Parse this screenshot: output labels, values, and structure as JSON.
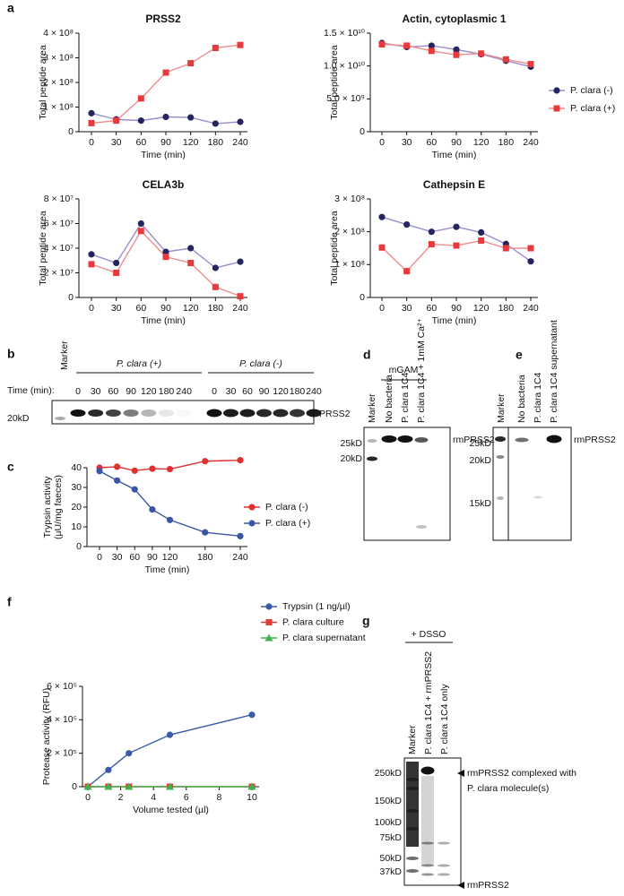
{
  "chart_data": [
    {
      "type": "line",
      "title": "PRSS2",
      "x_label": "Time (min)",
      "y_label": "Total peptide area",
      "categories": [
        0,
        30,
        60,
        90,
        120,
        180,
        240
      ],
      "ylim": [
        0,
        400000000
      ],
      "yticks": [
        0,
        {
          "value": 100000000,
          "label": "1 × 10⁸"
        },
        {
          "value": 200000000,
          "label": "2 × 10⁸"
        },
        {
          "value": 300000000,
          "label": "3 × 10⁸"
        },
        {
          "value": 400000000,
          "label": "4 × 10⁸"
        }
      ],
      "series": [
        {
          "color": "#24245e",
          "line_color": "#9c8ccc",
          "marker": "circle",
          "values": [
            75000000,
            50000000,
            45000000,
            60000000,
            58000000,
            33000000,
            40000000
          ]
        },
        {
          "color": "#e8393c",
          "line_color": "#f08c8c",
          "marker": "square",
          "values": [
            35000000,
            45000000,
            135000000,
            240000000,
            278000000,
            340000000,
            352000000
          ]
        }
      ]
    },
    {
      "type": "line",
      "title": "Actin, cytoplasmic 1",
      "x_label": "Time (min)",
      "y_label": "Total peptide area",
      "categories": [
        0,
        30,
        60,
        90,
        120,
        180,
        240
      ],
      "ylim": [
        0,
        15000000000
      ],
      "yticks": [
        0,
        {
          "value": 5000000000,
          "label": "5.0 × 10⁹"
        },
        {
          "value": 10000000000,
          "label": "1.0 × 10¹⁰"
        },
        {
          "value": 15000000000,
          "label": "1.5 × 10¹⁰"
        }
      ],
      "legend": true,
      "series": [
        {
          "name": "P. clara (-)",
          "color": "#24245e",
          "line_color": "#9c8ccc",
          "marker": "circle",
          "values": [
            13500000000,
            12900000000,
            13100000000,
            12500000000,
            11800000000,
            10800000000,
            9900000000
          ]
        },
        {
          "name": "P. clara (+)",
          "color": "#e8393c",
          "line_color": "#f08c8c",
          "marker": "square",
          "values": [
            13300000000,
            13100000000,
            12300000000,
            11700000000,
            11900000000,
            11000000000,
            10300000000
          ]
        }
      ]
    },
    {
      "type": "line",
      "title": "CELA3b",
      "x_label": "Time (min)",
      "y_label": "Total peptide area",
      "categories": [
        0,
        30,
        60,
        90,
        120,
        180,
        240
      ],
      "ylim": [
        0,
        80000000
      ],
      "yticks": [
        0,
        {
          "value": 20000000,
          "label": "2 × 10⁷"
        },
        {
          "value": 40000000,
          "label": "4 × 10⁷"
        },
        {
          "value": 60000000,
          "label": "6 × 10⁷"
        },
        {
          "value": 80000000,
          "label": "8 × 10⁷"
        }
      ],
      "series": [
        {
          "color": "#24245e",
          "line_color": "#9c8ccc",
          "marker": "circle",
          "values": [
            35000000,
            28000000,
            60000000,
            37000000,
            40000000,
            24000000,
            29000000
          ]
        },
        {
          "color": "#e8393c",
          "line_color": "#f08c8c",
          "marker": "square",
          "values": [
            27000000,
            20000000,
            54000000,
            33000000,
            28000000,
            8500000,
            1000000
          ]
        }
      ]
    },
    {
      "type": "line",
      "title": "Cathepsin E",
      "x_label": "Time (min)",
      "y_label": "Total peptide area",
      "categories": [
        0,
        30,
        60,
        90,
        120,
        180,
        240
      ],
      "ylim": [
        0,
        300000000
      ],
      "yticks": [
        0,
        {
          "value": 100000000,
          "label": "1 × 10⁸"
        },
        {
          "value": 200000000,
          "label": "2 × 10⁸"
        },
        {
          "value": 300000000,
          "label": "3 × 10⁸"
        }
      ],
      "series": [
        {
          "color": "#24245e",
          "line_color": "#9c8ccc",
          "marker": "circle",
          "values": [
            245000000,
            222000000,
            200000000,
            215000000,
            198000000,
            163000000,
            110000000
          ]
        },
        {
          "color": "#e8393c",
          "line_color": "#f08c8c",
          "marker": "square",
          "values": [
            152000000,
            80000000,
            162000000,
            158000000,
            173000000,
            150000000,
            150000000
          ]
        }
      ]
    },
    {
      "type": "line",
      "x_label": "Time (min)",
      "y_label": [
        "Trypsin activity",
        "(µU/mg faeces)"
      ],
      "x": [
        0,
        30,
        60,
        90,
        120,
        180,
        240
      ],
      "xlim": [
        0,
        240
      ],
      "xticks": [
        0,
        30,
        60,
        90,
        120,
        180,
        240
      ],
      "ylim": [
        0,
        40
      ],
      "yticks": [
        0,
        10,
        20,
        30,
        40
      ],
      "legend": true,
      "series": [
        {
          "name": "P. clara (-)",
          "color": "#e0312f",
          "line_color": "#e0312f",
          "marker": "circle",
          "values": [
            40,
            40.5,
            38.5,
            39.5,
            39.3,
            43.3,
            43.8
          ]
        },
        {
          "name": "P. clara (+)",
          "color": "#3a56a5",
          "line_color": "#3a56a5",
          "marker": "circle",
          "values": [
            38.3,
            33.5,
            29,
            18.8,
            13.5,
            7.2,
            5.3
          ]
        }
      ]
    },
    {
      "type": "line",
      "x_label": "Volume tested (µl)",
      "y_label": "Protease activity (RFU)",
      "x": [
        0,
        1.25,
        2.5,
        5,
        10
      ],
      "xlim": [
        0,
        10
      ],
      "xticks": [
        0,
        2,
        4,
        6,
        8,
        10
      ],
      "ylim": [
        0,
        600000
      ],
      "yticks": [
        0,
        {
          "value": 200000,
          "label": "2 × 10⁵"
        },
        {
          "value": 400000,
          "label": "4 × 10⁵"
        },
        {
          "value": 600000,
          "label": "6 × 10⁵"
        }
      ],
      "legend": true,
      "series": [
        {
          "name": "Trypsin (1 ng/µl)",
          "color": "#3a5ba8",
          "line_color": "#3a5ba8",
          "marker": "circle",
          "values": [
            0,
            100000,
            200000,
            310000,
            430000
          ]
        },
        {
          "name": "P. clara culture",
          "color": "#e33b35",
          "line_color": "#e33b35",
          "marker": "square",
          "values": [
            0,
            0,
            0,
            0,
            0
          ]
        },
        {
          "name": "P. clara supernatant",
          "color": "#3cb44b",
          "line_color": "#3cb44b",
          "marker": "triangle",
          "values": [
            0,
            0,
            0,
            0,
            0
          ]
        }
      ]
    }
  ],
  "panel_labels": [
    "a",
    "b",
    "c",
    "d",
    "e",
    "f",
    "g"
  ],
  "blot_b": {
    "marker": "Marker",
    "time_label": "Time (min):",
    "groups": [
      {
        "label": "P. clara (+)",
        "lanes": [
          "0",
          "30",
          "60",
          "90",
          "120",
          "180",
          "240"
        ]
      },
      {
        "label": "P. clara (-)",
        "lanes": [
          "0",
          "30",
          "60",
          "90",
          "120",
          "180",
          "240"
        ]
      }
    ],
    "size_markers": [
      "20kD"
    ],
    "band_label": "PRSS2"
  },
  "blot_d": {
    "header": "mGAM",
    "lanes": [
      "Marker",
      "No bacteria",
      "P. clara 1C4",
      "P. clara 1C4 + 1mM Ca²⁺"
    ],
    "size_markers": [
      "25kD",
      "20kD"
    ],
    "band_label": "rmPRSS2"
  },
  "blot_e": {
    "lanes": [
      "Marker",
      "No bacteria",
      "P. clara 1C4",
      "P. clara 1C4 supernatant"
    ],
    "size_markers": [
      "25kD",
      "20kD",
      "15kD"
    ],
    "band_label": "rmPRSS2"
  },
  "blot_g": {
    "header": "+ DSSO",
    "lanes": [
      "Marker",
      "P. clara 1C4 + rmPRSS2",
      "P. clara 1C4 only"
    ],
    "size_markers": [
      "250kD",
      "150kD",
      "100kD",
      "75kD",
      "50kD",
      "37kD"
    ],
    "annotations": [
      {
        "lines": [
          "rmPRSS2 complexed with",
          "P. clara molecule(s)"
        ]
      },
      {
        "lines": [
          "rmPRSS2"
        ]
      }
    ]
  }
}
